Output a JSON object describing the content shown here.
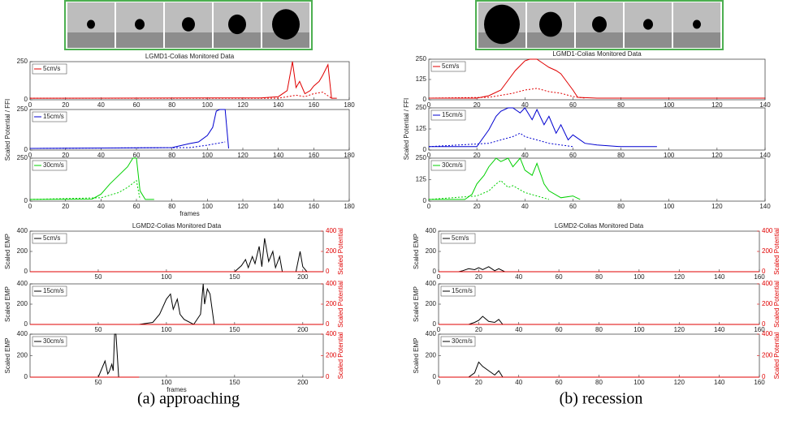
{
  "chart_data": [
    {
      "type": "line",
      "title": "LGMD1-Colias Monitored Data",
      "xlim": [
        0,
        180
      ],
      "xticks": [
        0,
        20,
        40,
        60,
        80,
        100,
        120,
        140,
        160,
        180
      ],
      "ylim": [
        0,
        250
      ],
      "yticks": [
        0,
        250
      ],
      "series": [
        {
          "name": "5cm/s",
          "color": "#e00000",
          "x": [
            0,
            130,
            140,
            145,
            148,
            150,
            152,
            155,
            158,
            160,
            163,
            165,
            168,
            170,
            173
          ],
          "values": [
            10,
            12,
            20,
            60,
            250,
            80,
            120,
            40,
            60,
            90,
            120,
            160,
            230,
            10,
            10
          ]
        },
        {
          "color": "#e00000",
          "style": "dotted",
          "x": [
            0,
            140,
            150,
            155,
            160,
            165,
            170
          ],
          "values": [
            10,
            10,
            30,
            20,
            40,
            50,
            10
          ]
        }
      ]
    },
    {
      "type": "line",
      "ylabel": "Scaled Potential / FFI",
      "xlim": [
        0,
        180
      ],
      "xticks": [
        0,
        20,
        40,
        60,
        80,
        100,
        120,
        140,
        160,
        180
      ],
      "ylim": [
        0,
        250
      ],
      "yticks": [
        0,
        250
      ],
      "series": [
        {
          "name": "15cm/s",
          "color": "#0000d0",
          "x": [
            0,
            80,
            90,
            95,
            100,
            103,
            105,
            107,
            110,
            112
          ],
          "values": [
            10,
            15,
            40,
            50,
            90,
            140,
            240,
            250,
            250,
            10
          ]
        },
        {
          "color": "#0000d0",
          "style": "dotted",
          "x": [
            0,
            90,
            100,
            105,
            110
          ],
          "values": [
            10,
            15,
            30,
            40,
            50
          ]
        }
      ]
    },
    {
      "type": "line",
      "xlabel": "frames",
      "xlim": [
        0,
        180
      ],
      "xticks": [
        0,
        20,
        40,
        60,
        80,
        100,
        120,
        140,
        160,
        180
      ],
      "ylim": [
        0,
        250
      ],
      "yticks": [
        0,
        250
      ],
      "series": [
        {
          "name": "30cm/s",
          "color": "#00d000",
          "x": [
            0,
            35,
            40,
            45,
            50,
            55,
            58,
            60,
            62,
            65,
            70
          ],
          "values": [
            10,
            12,
            40,
            100,
            150,
            200,
            250,
            250,
            60,
            10,
            10
          ]
        },
        {
          "color": "#00d000",
          "style": "dotted",
          "x": [
            0,
            40,
            50,
            55,
            60,
            62
          ],
          "values": [
            10,
            20,
            50,
            80,
            120,
            10
          ]
        }
      ]
    },
    {
      "type": "line",
      "title": "LGMD1-Colias Monitored Data",
      "xlim": [
        0,
        140
      ],
      "xticks": [
        0,
        20,
        40,
        60,
        80,
        100,
        120,
        140
      ],
      "ylim": [
        0,
        250
      ],
      "yticks": [
        0,
        125,
        250
      ],
      "series": [
        {
          "name": "5cm/s",
          "color": "#e00000",
          "x": [
            0,
            20,
            25,
            30,
            33,
            36,
            40,
            42,
            45,
            48,
            50,
            53,
            55,
            58,
            60,
            62,
            70,
            140
          ],
          "values": [
            10,
            10,
            25,
            60,
            120,
            180,
            240,
            250,
            250,
            220,
            200,
            180,
            160,
            100,
            60,
            15,
            10,
            10
          ]
        },
        {
          "color": "#e00000",
          "style": "dotted",
          "x": [
            0,
            25,
            35,
            40,
            45,
            50,
            55,
            60,
            65
          ],
          "values": [
            10,
            15,
            40,
            60,
            70,
            50,
            40,
            20,
            10
          ]
        }
      ]
    },
    {
      "type": "line",
      "ylabel": "Scaled Potential / FFI",
      "xlim": [
        0,
        140
      ],
      "xticks": [
        0,
        20,
        40,
        60,
        80,
        100,
        120,
        140
      ],
      "ylim": [
        0,
        250
      ],
      "yticks": [
        0,
        125,
        250
      ],
      "series": [
        {
          "name": "15cm/s",
          "color": "#0000d0",
          "x": [
            0,
            20,
            25,
            28,
            30,
            33,
            35,
            38,
            40,
            43,
            45,
            48,
            50,
            53,
            55,
            58,
            60,
            65,
            70,
            80,
            95
          ],
          "values": [
            20,
            20,
            120,
            200,
            230,
            250,
            250,
            220,
            250,
            180,
            240,
            150,
            200,
            100,
            150,
            60,
            90,
            40,
            30,
            20,
            20
          ]
        },
        {
          "color": "#0000d0",
          "style": "dotted",
          "x": [
            0,
            25,
            30,
            35,
            38,
            40,
            45,
            50,
            60
          ],
          "values": [
            20,
            40,
            60,
            80,
            100,
            80,
            60,
            40,
            20
          ]
        }
      ]
    },
    {
      "type": "line",
      "xlim": [
        0,
        140
      ],
      "xticks": [
        0,
        20,
        40,
        60,
        80,
        100,
        120,
        140
      ],
      "ylim": [
        0,
        250
      ],
      "yticks": [
        0,
        125,
        250
      ],
      "series": [
        {
          "name": "30cm/s",
          "color": "#00d000",
          "x": [
            0,
            15,
            18,
            20,
            23,
            25,
            28,
            30,
            33,
            35,
            38,
            40,
            43,
            45,
            48,
            50,
            55,
            60,
            63
          ],
          "values": [
            10,
            10,
            40,
            100,
            150,
            200,
            250,
            230,
            250,
            200,
            250,
            180,
            150,
            220,
            100,
            60,
            20,
            30,
            10
          ]
        },
        {
          "color": "#00d000",
          "style": "dotted",
          "x": [
            0,
            20,
            25,
            28,
            30,
            33,
            35,
            40,
            45,
            50
          ],
          "values": [
            10,
            30,
            60,
            100,
            120,
            80,
            90,
            50,
            30,
            10
          ]
        }
      ]
    },
    {
      "type": "line",
      "title": "LGMD2-Colias Monitored Data",
      "ylabel": "Scaled EMP",
      "y2label": "Scaled Potential",
      "xlim": [
        0,
        215
      ],
      "xticks": [
        50,
        100,
        150,
        200
      ],
      "ylim": [
        0,
        400
      ],
      "yticks": [
        0,
        200,
        400
      ],
      "y2lim": [
        0,
        400
      ],
      "y2ticks": [
        0,
        200,
        400
      ],
      "series": [
        {
          "name": "5cm/s",
          "color": "#000000",
          "x": [
            0,
            150,
            155,
            158,
            160,
            163,
            165,
            168,
            170,
            172,
            175,
            178,
            180,
            183,
            185,
            195,
            198,
            200,
            203,
            215
          ],
          "values": [
            0,
            0,
            60,
            120,
            40,
            150,
            80,
            250,
            50,
            330,
            100,
            200,
            40,
            150,
            0,
            0,
            200,
            50,
            0,
            0
          ]
        },
        {
          "color": "#e00000",
          "axis": "y2",
          "x": [
            0,
            215
          ],
          "values": [
            0,
            0
          ]
        }
      ]
    },
    {
      "type": "line",
      "ylabel": "Scaled EMP",
      "y2label": "Scaled Potential",
      "xlim": [
        0,
        215
      ],
      "xticks": [
        50,
        100,
        150,
        200
      ],
      "ylim": [
        0,
        400
      ],
      "yticks": [
        0,
        200,
        400
      ],
      "y2lim": [
        0,
        400
      ],
      "y2ticks": [
        0,
        200,
        400
      ],
      "series": [
        {
          "name": "15cm/s",
          "color": "#000000",
          "x": [
            0,
            80,
            90,
            95,
            100,
            103,
            105,
            108,
            110,
            113,
            120,
            125,
            127,
            128,
            130,
            132,
            135,
            140,
            215
          ],
          "values": [
            0,
            0,
            20,
            100,
            250,
            300,
            150,
            250,
            100,
            50,
            0,
            100,
            400,
            200,
            350,
            300,
            0,
            0,
            0
          ]
        },
        {
          "color": "#e00000",
          "axis": "y2",
          "x": [
            0,
            215
          ],
          "values": [
            0,
            0
          ]
        }
      ]
    },
    {
      "type": "line",
      "ylabel": "Scaled EMP",
      "y2label": "Scaled Potential",
      "xlabel": "frames",
      "xlim": [
        0,
        215
      ],
      "xticks": [
        50,
        100,
        150,
        200
      ],
      "ylim": [
        0,
        400
      ],
      "yticks": [
        0,
        200,
        400
      ],
      "y2lim": [
        0,
        400
      ],
      "y2ticks": [
        0,
        200,
        400
      ],
      "series": [
        {
          "name": "30cm/s",
          "color": "#000000",
          "x": [
            0,
            50,
            55,
            57,
            58,
            60,
            61,
            62,
            63,
            65
          ],
          "values": [
            0,
            0,
            150,
            30,
            50,
            120,
            60,
            400,
            400,
            0
          ]
        },
        {
          "color": "#e00000",
          "axis": "y2",
          "x": [
            0,
            80
          ],
          "values": [
            0,
            0
          ]
        }
      ]
    },
    {
      "type": "line",
      "title": "LGMD2-Colias Monitored Data",
      "ylabel": "Scaled EMP",
      "y2label": "Scaled Potential",
      "xlim": [
        0,
        160
      ],
      "xticks": [
        0,
        20,
        40,
        60,
        80,
        100,
        120,
        140,
        160
      ],
      "ylim": [
        0,
        400
      ],
      "yticks": [
        0,
        200,
        400
      ],
      "y2lim": [
        0,
        400
      ],
      "y2ticks": [
        0,
        200,
        400
      ],
      "series": [
        {
          "name": "5cm/s",
          "color": "#000000",
          "x": [
            0,
            10,
            12,
            15,
            18,
            20,
            22,
            25,
            28,
            30,
            33,
            160
          ],
          "values": [
            0,
            0,
            10,
            30,
            20,
            40,
            20,
            50,
            10,
            30,
            0,
            0
          ]
        },
        {
          "color": "#e00000",
          "axis": "y2",
          "x": [
            0,
            160
          ],
          "values": [
            0,
            0
          ]
        }
      ]
    },
    {
      "type": "line",
      "ylabel": "Scaled EMP",
      "y2label": "Scaled Potential",
      "xlim": [
        0,
        160
      ],
      "xticks": [
        0,
        20,
        40,
        60,
        80,
        100,
        120,
        140,
        160
      ],
      "ylim": [
        0,
        400
      ],
      "yticks": [
        0,
        200,
        400
      ],
      "y2lim": [
        0,
        400
      ],
      "y2ticks": [
        0,
        200,
        400
      ],
      "series": [
        {
          "name": "15cm/s",
          "color": "#000000",
          "x": [
            0,
            15,
            18,
            20,
            22,
            25,
            28,
            30,
            32,
            160
          ],
          "values": [
            0,
            0,
            20,
            40,
            80,
            30,
            20,
            50,
            0,
            0
          ]
        },
        {
          "color": "#e00000",
          "axis": "y2",
          "x": [
            0,
            160
          ],
          "values": [
            0,
            0
          ]
        }
      ]
    },
    {
      "type": "line",
      "ylabel": "Scaled EMP",
      "y2label": "Scaled Potential",
      "xlim": [
        0,
        160
      ],
      "xticks": [
        0,
        20,
        40,
        60,
        80,
        100,
        120,
        140,
        160
      ],
      "ylim": [
        0,
        400
      ],
      "yticks": [
        0,
        200,
        400
      ],
      "y2lim": [
        0,
        400
      ],
      "y2ticks": [
        0,
        200,
        400
      ],
      "series": [
        {
          "name": "30cm/s",
          "color": "#000000",
          "x": [
            0,
            15,
            18,
            20,
            22,
            25,
            28,
            30,
            32,
            160
          ],
          "values": [
            0,
            0,
            40,
            140,
            100,
            60,
            20,
            60,
            0,
            0
          ]
        },
        {
          "color": "#e00000",
          "axis": "y2",
          "x": [
            0,
            160
          ],
          "values": [
            0,
            0
          ]
        }
      ]
    }
  ],
  "captions": [
    "(a) approaching",
    "(b) recession"
  ]
}
